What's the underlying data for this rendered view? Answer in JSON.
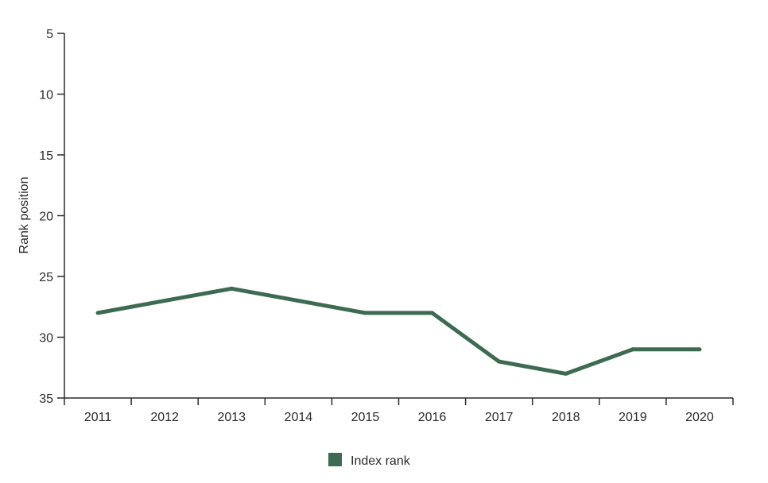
{
  "chart_data": {
    "type": "line",
    "title": "",
    "xlabel": "",
    "ylabel": "Rank position",
    "y_inverted": true,
    "ylim": [
      5,
      35
    ],
    "yticks": [
      5,
      10,
      15,
      20,
      25,
      30,
      35
    ],
    "categories": [
      "2011",
      "2012",
      "2013",
      "2014",
      "2015",
      "2016",
      "2017",
      "2018",
      "2019",
      "2020"
    ],
    "series": [
      {
        "name": "Index rank",
        "color": "#3d6b52",
        "values": [
          28,
          27,
          26,
          27,
          28,
          28,
          32,
          33,
          31,
          31
        ]
      }
    ],
    "grid": false,
    "legend_position": "bottom-center"
  }
}
